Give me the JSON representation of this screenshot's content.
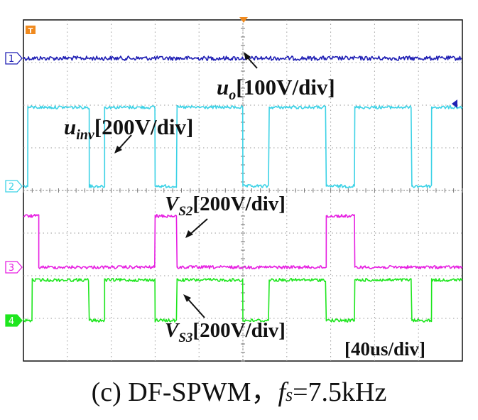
{
  "chart_data": {
    "type": "line",
    "instrument": "oscilloscope",
    "grid": true,
    "time_scale": "[40us/div]",
    "x_divisions": 10,
    "y_divisions": 8,
    "trigger_marker": "T",
    "series": [
      {
        "name": "u_o",
        "channel": "1",
        "color": "#1f1fb4",
        "label_main": "u",
        "label_sub": "o",
        "scale": "[100V/div]",
        "baseline_div": 0.9,
        "high_div": 0.9,
        "segments": [
          [
            0,
            10,
            "H"
          ]
        ]
      },
      {
        "name": "u_inv",
        "channel": "2",
        "color": "#3cd2e6",
        "label_main": "u",
        "label_sub": "inv",
        "scale": "[200V/div]",
        "baseline_div": 3.9,
        "high_div": 2.05,
        "segments": [
          [
            0,
            0.1,
            "L"
          ],
          [
            0.1,
            1.5,
            "H"
          ],
          [
            1.5,
            1.85,
            "L"
          ],
          [
            1.85,
            3.0,
            "H"
          ],
          [
            3.0,
            3.5,
            "L"
          ],
          [
            3.5,
            5.0,
            "H"
          ],
          [
            5.0,
            5.6,
            "L"
          ],
          [
            5.6,
            6.9,
            "H"
          ],
          [
            6.9,
            7.55,
            "L"
          ],
          [
            7.55,
            8.85,
            "H"
          ],
          [
            8.85,
            9.3,
            "L"
          ],
          [
            9.3,
            10.0,
            "H"
          ]
        ]
      },
      {
        "name": "V_S2",
        "channel": "3",
        "color": "#e61ee1",
        "label_main": "V",
        "label_sub": "S2",
        "scale": "[200V/div]",
        "baseline_div": 5.8,
        "high_div": 4.6,
        "segments": [
          [
            0,
            0.35,
            "H"
          ],
          [
            0.35,
            3.0,
            "L"
          ],
          [
            3.0,
            3.5,
            "H"
          ],
          [
            3.5,
            6.9,
            "L"
          ],
          [
            6.9,
            7.55,
            "H"
          ],
          [
            7.55,
            10.0,
            "L"
          ]
        ]
      },
      {
        "name": "V_S3",
        "channel": "4",
        "color": "#1ee61e",
        "label_main": "V",
        "label_sub": "S3",
        "scale": "[200V/div]",
        "baseline_div": 7.05,
        "high_div": 6.1,
        "segments": [
          [
            0,
            0.2,
            "L"
          ],
          [
            0.2,
            1.5,
            "H"
          ],
          [
            1.5,
            1.85,
            "L"
          ],
          [
            1.85,
            3.0,
            "H"
          ],
          [
            3.0,
            3.5,
            "L"
          ],
          [
            3.5,
            5.0,
            "H"
          ],
          [
            5.0,
            5.6,
            "L"
          ],
          [
            5.6,
            6.9,
            "H"
          ],
          [
            6.9,
            7.55,
            "L"
          ],
          [
            7.55,
            8.85,
            "H"
          ],
          [
            8.85,
            9.3,
            "L"
          ],
          [
            9.3,
            10.0,
            "H"
          ]
        ]
      }
    ]
  },
  "caption": {
    "prefix": "(c) DF-SPWM，",
    "var": "f",
    "sub": "s",
    "suffix": "=7.5kHz"
  }
}
